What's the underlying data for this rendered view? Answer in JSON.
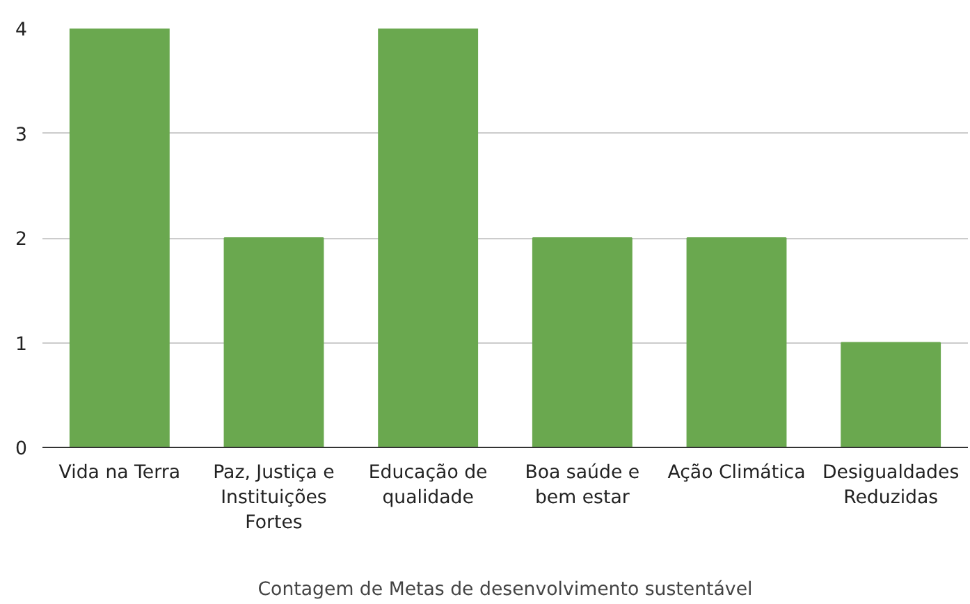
{
  "chart_data": {
    "type": "bar",
    "xlabel": "Contagem de Metas de desenvolvimento sustentável",
    "categories": [
      "Vida na Terra",
      "Paz, Justiça e Instituições Fortes",
      "Educação de qualidade",
      "Boa saúde e bem estar",
      "Ação Climática",
      "Desigualdades Reduzidas"
    ],
    "values": [
      4,
      2,
      4,
      2,
      2,
      1
    ],
    "color": "#6aa84f",
    "ylim": [
      0,
      4
    ],
    "yticks": [
      0,
      1,
      2,
      3,
      4
    ],
    "grid": "y"
  }
}
